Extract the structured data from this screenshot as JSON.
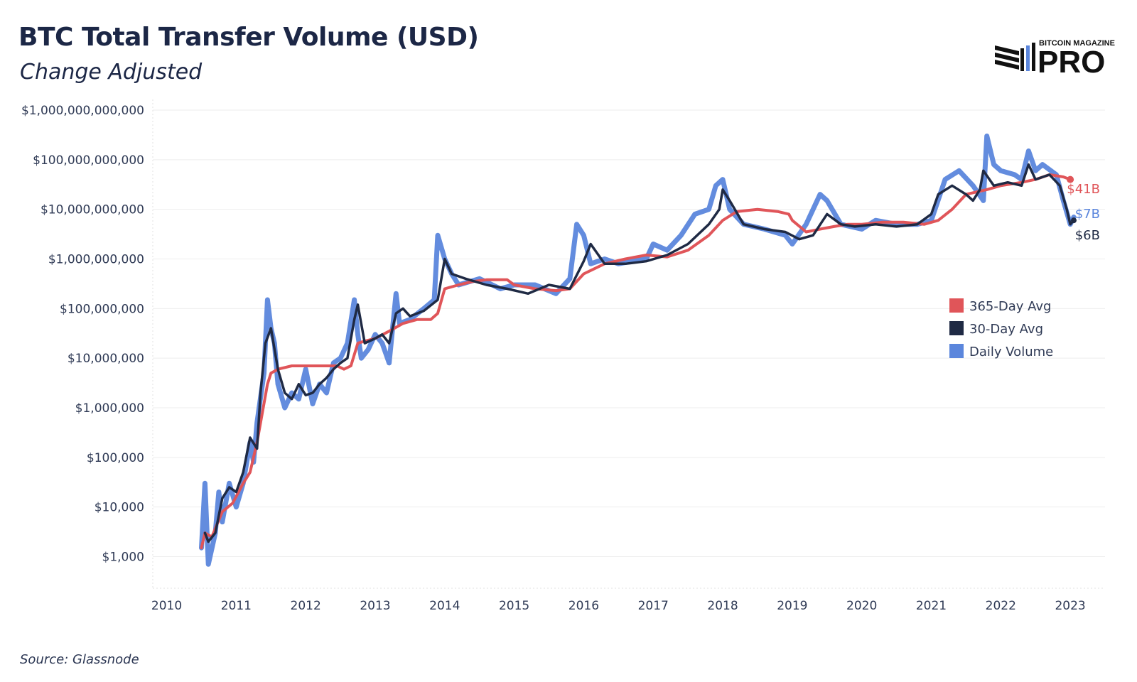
{
  "title": "BTC Total Transfer Volume (USD)",
  "subtitle": "Change Adjusted",
  "source": "Source: Glassnode",
  "logo": {
    "top_text": "BITCOIN MAGAZINE",
    "main_text": "PRO",
    "icon": "bars-logo-icon"
  },
  "colors": {
    "daily": "#5b86dc",
    "avg30": "#1f2a44",
    "avg365": "#e05559",
    "grid": "#eeeeee",
    "text": "#2f3a55"
  },
  "chart_data": {
    "type": "line",
    "title": "BTC Total Transfer Volume (USD)",
    "subtitle": "Change Adjusted",
    "xlabel": "",
    "ylabel": "",
    "yscale": "log",
    "ylim": [
      300,
      1000000000000
    ],
    "xlim": [
      2009.8,
      2023.5
    ],
    "grid": true,
    "legend_position": "right",
    "y_ticks": [
      {
        "value": 1000,
        "label": "$1,000"
      },
      {
        "value": 10000,
        "label": "$10,000"
      },
      {
        "value": 100000,
        "label": "$100,000"
      },
      {
        "value": 1000000,
        "label": "$1,000,000"
      },
      {
        "value": 10000000,
        "label": "$10,000,000"
      },
      {
        "value": 100000000,
        "label": "$100,000,000"
      },
      {
        "value": 1000000000,
        "label": "$1,000,000,000"
      },
      {
        "value": 10000000000,
        "label": "$10,000,000,000"
      },
      {
        "value": 100000000000,
        "label": "$100,000,000,000"
      },
      {
        "value": 1000000000000,
        "label": "$1,000,000,000,000"
      }
    ],
    "x_ticks": [
      {
        "value": 2010,
        "label": "2010"
      },
      {
        "value": 2011,
        "label": "2011"
      },
      {
        "value": 2012,
        "label": "2012"
      },
      {
        "value": 2013,
        "label": "2013"
      },
      {
        "value": 2014,
        "label": "2014"
      },
      {
        "value": 2015,
        "label": "2015"
      },
      {
        "value": 2016,
        "label": "2016"
      },
      {
        "value": 2017,
        "label": "2017"
      },
      {
        "value": 2018,
        "label": "2018"
      },
      {
        "value": 2019,
        "label": "2019"
      },
      {
        "value": 2020,
        "label": "2020"
      },
      {
        "value": 2021,
        "label": "2021"
      },
      {
        "value": 2022,
        "label": "2022"
      },
      {
        "value": 2023,
        "label": "2023"
      }
    ],
    "legend": [
      {
        "name": "365-Day Avg",
        "color": "#e05559"
      },
      {
        "name": "30-Day Avg",
        "color": "#1f2a44"
      },
      {
        "name": "Daily Volume",
        "color": "#5b86dc"
      }
    ],
    "end_labels": [
      {
        "series": "365-Day Avg",
        "text": "$41B",
        "color": "#e05559"
      },
      {
        "series": "Daily Volume",
        "text": "$7B",
        "color": "#5b86dc"
      },
      {
        "series": "30-Day Avg",
        "text": "$6B",
        "color": "#1f2a44"
      }
    ],
    "series": [
      {
        "name": "Daily Volume",
        "x": [
          2010.5,
          2010.55,
          2010.6,
          2010.7,
          2010.75,
          2010.8,
          2010.9,
          2011.0,
          2011.1,
          2011.2,
          2011.25,
          2011.3,
          2011.4,
          2011.45,
          2011.5,
          2011.55,
          2011.6,
          2011.7,
          2011.8,
          2011.9,
          2012.0,
          2012.1,
          2012.2,
          2012.3,
          2012.4,
          2012.5,
          2012.6,
          2012.7,
          2012.75,
          2012.8,
          2012.9,
          2013.0,
          2013.1,
          2013.2,
          2013.3,
          2013.35,
          2013.5,
          2013.7,
          2013.85,
          2013.9,
          2014.0,
          2014.1,
          2014.2,
          2014.5,
          2014.8,
          2015.0,
          2015.3,
          2015.6,
          2015.8,
          2015.9,
          2016.0,
          2016.1,
          2016.3,
          2016.5,
          2016.7,
          2016.9,
          2017.0,
          2017.2,
          2017.4,
          2017.6,
          2017.8,
          2017.9,
          2018.0,
          2018.1,
          2018.3,
          2018.6,
          2018.9,
          2019.0,
          2019.2,
          2019.4,
          2019.5,
          2019.7,
          2020.0,
          2020.2,
          2020.5,
          2020.8,
          2021.0,
          2021.2,
          2021.4,
          2021.6,
          2021.75,
          2021.8,
          2021.9,
          2022.0,
          2022.2,
          2022.3,
          2022.4,
          2022.5,
          2022.6,
          2022.8,
          2022.9,
          2023.0,
          2023.05
        ],
        "values": [
          1500,
          30000,
          700,
          3000,
          20000,
          5000,
          30000,
          10000,
          30000,
          200000,
          80000,
          500000,
          5000000,
          150000000,
          40000000,
          20000000,
          3000000,
          1000000,
          2000000,
          1500000,
          6000000,
          1200000,
          3000000,
          2000000,
          8000000,
          10000000,
          20000000,
          150000000,
          30000000,
          10000000,
          15000000,
          30000000,
          20000000,
          8000000,
          200000000,
          50000000,
          60000000,
          100000000,
          150000000,
          3000000000,
          1000000000,
          500000000,
          300000000,
          400000000,
          250000000,
          300000000,
          300000000,
          200000000,
          400000000,
          5000000000,
          3000000000,
          800000000,
          1000000000,
          800000000,
          900000000,
          1000000000,
          2000000000,
          1500000000,
          3000000000,
          8000000000,
          10000000000,
          30000000000,
          40000000000,
          10000000000,
          5000000000,
          4000000000,
          3000000000,
          2000000000,
          5000000000,
          20000000000,
          15000000000,
          5000000000,
          4000000000,
          6000000000,
          5000000000,
          5000000000,
          6000000000,
          40000000000,
          60000000000,
          30000000000,
          15000000000,
          300000000000,
          80000000000,
          60000000000,
          50000000000,
          40000000000,
          150000000000,
          60000000000,
          80000000000,
          50000000000,
          15000000000,
          5000000000,
          7000000000
        ]
      },
      {
        "name": "30-Day Avg",
        "x": [
          2010.55,
          2010.6,
          2010.7,
          2010.8,
          2010.9,
          2011.0,
          2011.1,
          2011.2,
          2011.3,
          2011.35,
          2011.42,
          2011.5,
          2011.6,
          2011.7,
          2011.8,
          2011.9,
          2012.0,
          2012.1,
          2012.2,
          2012.3,
          2012.4,
          2012.5,
          2012.6,
          2012.7,
          2012.75,
          2012.85,
          2013.0,
          2013.1,
          2013.2,
          2013.3,
          2013.4,
          2013.5,
          2013.7,
          2013.9,
          2014.0,
          2014.1,
          2014.3,
          2014.6,
          2014.9,
          2015.2,
          2015.5,
          2015.8,
          2016.0,
          2016.1,
          2016.3,
          2016.6,
          2016.9,
          2017.2,
          2017.5,
          2017.8,
          2017.95,
          2018.0,
          2018.1,
          2018.3,
          2018.6,
          2018.9,
          2019.1,
          2019.3,
          2019.5,
          2019.7,
          2019.9,
          2020.2,
          2020.5,
          2020.8,
          2021.0,
          2021.1,
          2021.3,
          2021.5,
          2021.6,
          2021.7,
          2021.75,
          2021.9,
          2022.1,
          2022.3,
          2022.4,
          2022.5,
          2022.7,
          2022.85,
          2022.95,
          2023.0,
          2023.05
        ],
        "values": [
          3000,
          2000,
          3000,
          15000,
          25000,
          20000,
          50000,
          250000,
          150000,
          2000000,
          20000000,
          40000000,
          6000000,
          2000000,
          1500000,
          3000000,
          1800000,
          2000000,
          3000000,
          4000000,
          6000000,
          8000000,
          10000000,
          60000000,
          120000000,
          20000000,
          25000000,
          30000000,
          20000000,
          80000000,
          100000000,
          70000000,
          90000000,
          150000000,
          1000000000,
          500000000,
          400000000,
          300000000,
          250000000,
          200000000,
          300000000,
          250000000,
          900000000,
          2000000000,
          800000000,
          800000000,
          900000000,
          1200000000,
          2000000000,
          5000000000,
          10000000000,
          25000000000,
          15000000000,
          5000000000,
          4000000000,
          3500000000,
          2500000000,
          3000000000,
          8000000000,
          5000000000,
          4500000000,
          5000000000,
          4500000000,
          5000000000,
          8000000000,
          20000000000,
          30000000000,
          20000000000,
          15000000000,
          25000000000,
          60000000000,
          30000000000,
          35000000000,
          30000000000,
          80000000000,
          40000000000,
          50000000000,
          30000000000,
          10000000000,
          5000000000,
          6000000000
        ]
      },
      {
        "name": "365-Day Avg",
        "x": [
          2010.5,
          2010.55,
          2010.65,
          2010.8,
          2010.95,
          2011.1,
          2011.2,
          2011.3,
          2011.45,
          2011.5,
          2011.6,
          2011.8,
          2012.0,
          2012.3,
          2012.45,
          2012.55,
          2012.65,
          2012.75,
          2012.85,
          2013.0,
          2013.2,
          2013.4,
          2013.6,
          2013.8,
          2013.9,
          2014.0,
          2014.2,
          2014.4,
          2014.6,
          2014.9,
          2015.0,
          2015.3,
          2015.6,
          2015.8,
          2016.0,
          2016.3,
          2016.6,
          2016.9,
          2017.2,
          2017.5,
          2017.8,
          2018.0,
          2018.2,
          2018.5,
          2018.8,
          2018.95,
          2019.0,
          2019.2,
          2019.4,
          2019.6,
          2019.8,
          2020.0,
          2020.3,
          2020.6,
          2020.9,
          2021.1,
          2021.3,
          2021.5,
          2021.8,
          2022.0,
          2022.3,
          2022.5,
          2022.7,
          2022.9,
          2023.0
        ],
        "values": [
          1500,
          3000,
          2500,
          8000,
          12000,
          30000,
          50000,
          200000,
          3000000,
          5000000,
          6000000,
          7000000,
          7000000,
          7000000,
          7000000,
          6000000,
          7000000,
          20000000,
          22000000,
          25000000,
          35000000,
          50000000,
          60000000,
          60000000,
          80000000,
          250000000,
          300000000,
          350000000,
          380000000,
          380000000,
          300000000,
          250000000,
          230000000,
          250000000,
          500000000,
          800000000,
          1000000000,
          1200000000,
          1100000000,
          1500000000,
          3000000000,
          6000000000,
          9000000000,
          10000000000,
          9000000000,
          8000000000,
          6000000000,
          3500000000,
          4000000000,
          4500000000,
          5000000000,
          5000000000,
          5500000000,
          5500000000,
          5000000000,
          6000000000,
          10000000000,
          20000000000,
          25000000000,
          30000000000,
          35000000000,
          40000000000,
          50000000000,
          45000000000,
          40000000000
        ]
      }
    ]
  }
}
